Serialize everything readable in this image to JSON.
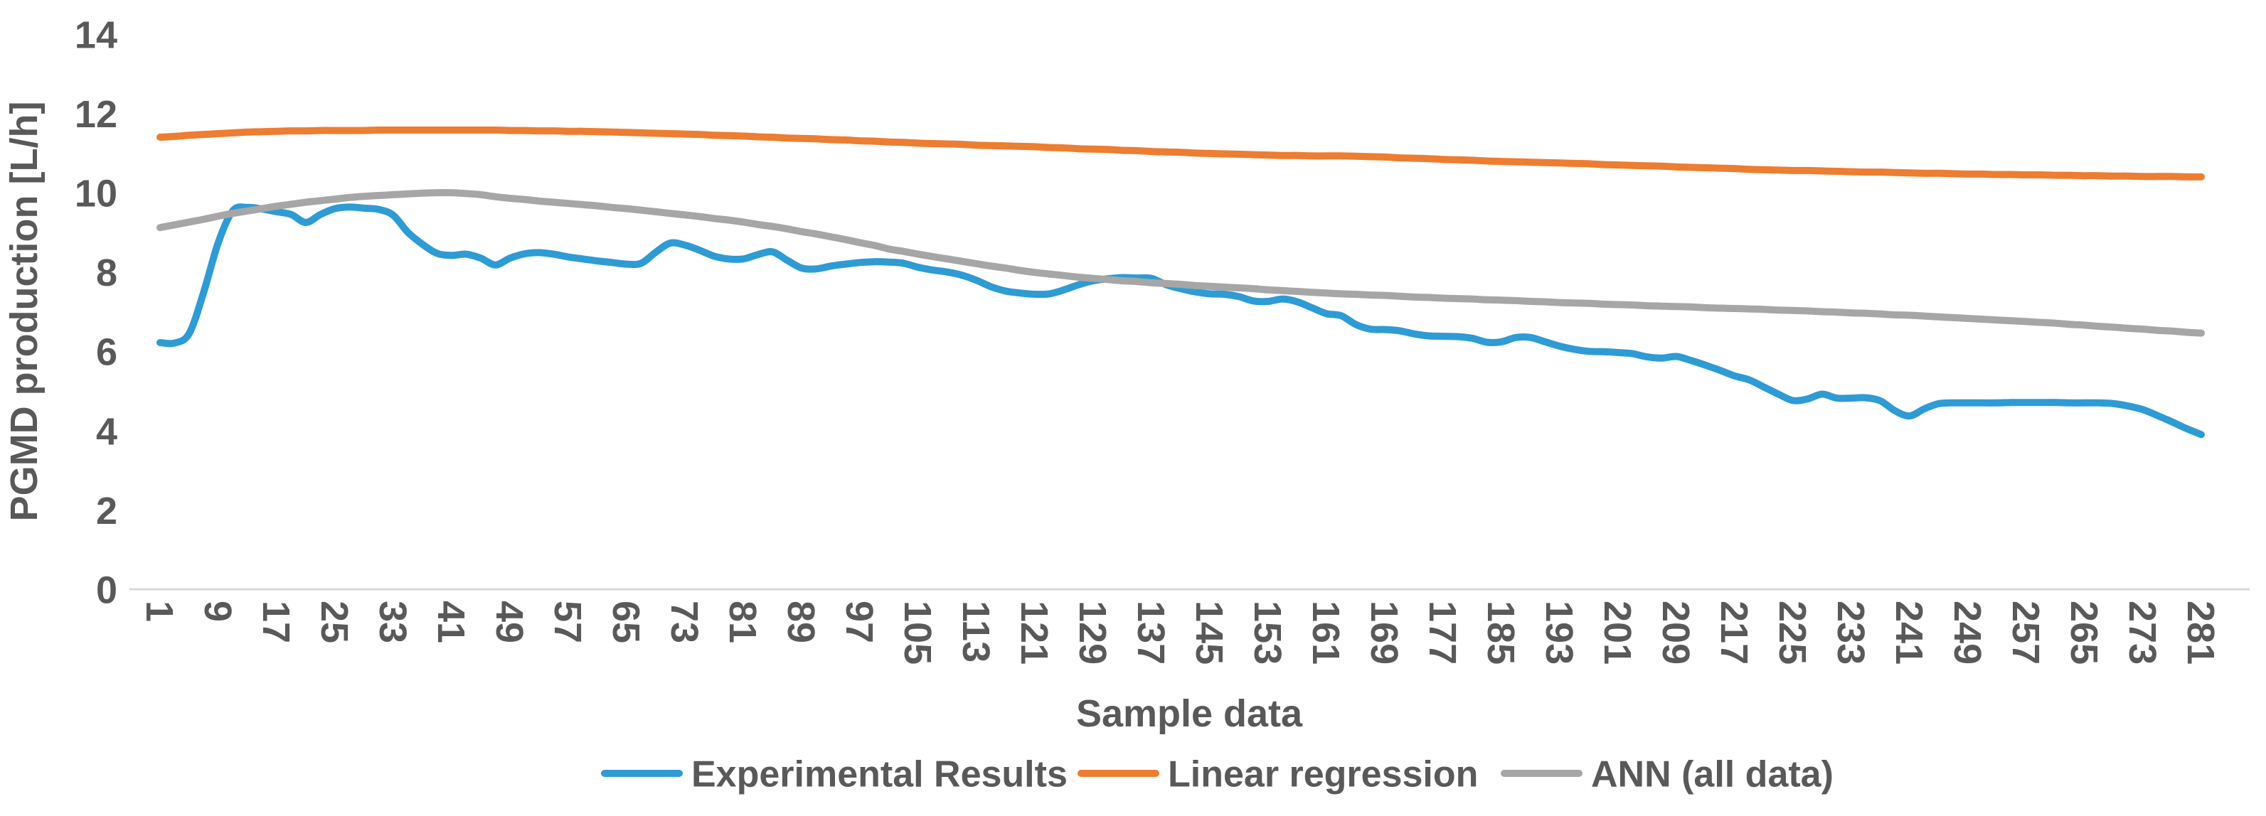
{
  "colors": {
    "background": "#FFFFFF",
    "text": "#595959",
    "axis_line": "#D9D9D9",
    "experimental_blue": "#2E9BD5",
    "regression_orange": "#ED7D31",
    "ann_gray": "#A6A6A6"
  },
  "chart_data": {
    "type": "line",
    "title": "",
    "xlabel": "Sample data",
    "ylabel": "PGMD production [L/h]",
    "xlim": [
      1,
      281
    ],
    "ylim": [
      0,
      14
    ],
    "grid": false,
    "legend_position": "bottom",
    "y_ticks": [
      0,
      2,
      4,
      6,
      8,
      10,
      12,
      14
    ],
    "x_ticks": [
      1,
      9,
      17,
      25,
      33,
      41,
      49,
      57,
      65,
      73,
      81,
      89,
      97,
      105,
      113,
      121,
      129,
      137,
      145,
      153,
      161,
      169,
      177,
      185,
      193,
      201,
      209,
      217,
      225,
      233,
      241,
      249,
      257,
      265,
      273,
      281
    ],
    "x": [
      1,
      3,
      5,
      7,
      9,
      11,
      13,
      15,
      17,
      19,
      21,
      23,
      25,
      27,
      29,
      31,
      33,
      35,
      37,
      39,
      41,
      43,
      45,
      47,
      49,
      51,
      53,
      55,
      57,
      59,
      61,
      63,
      65,
      67,
      69,
      71,
      73,
      75,
      77,
      79,
      81,
      83,
      85,
      87,
      89,
      91,
      93,
      95,
      97,
      99,
      101,
      103,
      105,
      107,
      109,
      111,
      113,
      115,
      117,
      119,
      121,
      123,
      125,
      127,
      129,
      131,
      133,
      135,
      137,
      139,
      141,
      143,
      145,
      147,
      149,
      151,
      153,
      155,
      157,
      159,
      161,
      163,
      165,
      167,
      169,
      171,
      173,
      175,
      177,
      179,
      181,
      183,
      185,
      187,
      189,
      191,
      193,
      195,
      197,
      199,
      201,
      203,
      205,
      207,
      209,
      211,
      213,
      215,
      217,
      219,
      221,
      223,
      225,
      227,
      229,
      231,
      233,
      235,
      237,
      239,
      241,
      243,
      245,
      247,
      249,
      251,
      253,
      255,
      257,
      259,
      261,
      263,
      265,
      267,
      269,
      271,
      273,
      275,
      277,
      279,
      281
    ],
    "series": [
      {
        "name": "Experimental Results",
        "color": "#2E9BD5",
        "values": [
          6.22,
          6.21,
          6.45,
          7.5,
          8.75,
          9.55,
          9.63,
          9.59,
          9.52,
          9.45,
          9.25,
          9.45,
          9.6,
          9.64,
          9.61,
          9.58,
          9.43,
          9.0,
          8.7,
          8.47,
          8.42,
          8.45,
          8.35,
          8.18,
          8.35,
          8.46,
          8.49,
          8.45,
          8.38,
          8.33,
          8.28,
          8.24,
          8.2,
          8.22,
          8.5,
          8.73,
          8.68,
          8.55,
          8.4,
          8.33,
          8.33,
          8.44,
          8.51,
          8.3,
          8.1,
          8.08,
          8.15,
          8.2,
          8.24,
          8.26,
          8.25,
          8.22,
          8.12,
          8.05,
          8.0,
          7.92,
          7.79,
          7.63,
          7.52,
          7.47,
          7.44,
          7.45,
          7.55,
          7.68,
          7.78,
          7.83,
          7.86,
          7.85,
          7.84,
          7.68,
          7.58,
          7.5,
          7.45,
          7.44,
          7.38,
          7.27,
          7.26,
          7.32,
          7.25,
          7.1,
          6.95,
          6.9,
          6.68,
          6.56,
          6.55,
          6.52,
          6.44,
          6.39,
          6.38,
          6.37,
          6.33,
          6.23,
          6.24,
          6.35,
          6.35,
          6.24,
          6.13,
          6.05,
          6.0,
          5.99,
          5.97,
          5.94,
          5.86,
          5.83,
          5.87,
          5.77,
          5.65,
          5.52,
          5.38,
          5.28,
          5.1,
          4.92,
          4.76,
          4.8,
          4.92,
          4.82,
          4.82,
          4.83,
          4.75,
          4.5,
          4.37,
          4.55,
          4.68,
          4.7,
          4.7,
          4.7,
          4.7,
          4.71,
          4.71,
          4.71,
          4.71,
          4.7,
          4.7,
          4.7,
          4.68,
          4.62,
          4.53,
          4.38,
          4.22,
          4.05,
          3.9
        ]
      },
      {
        "name": "Linear regression",
        "color": "#ED7D31",
        "values": [
          11.4,
          11.42,
          11.45,
          11.47,
          11.49,
          11.51,
          11.53,
          11.54,
          11.55,
          11.56,
          11.56,
          11.57,
          11.57,
          11.57,
          11.57,
          11.58,
          11.58,
          11.58,
          11.58,
          11.58,
          11.58,
          11.58,
          11.58,
          11.58,
          11.57,
          11.57,
          11.56,
          11.56,
          11.55,
          11.55,
          11.54,
          11.53,
          11.52,
          11.51,
          11.5,
          11.49,
          11.48,
          11.47,
          11.45,
          11.44,
          11.43,
          11.41,
          11.4,
          11.38,
          11.37,
          11.36,
          11.34,
          11.33,
          11.31,
          11.3,
          11.28,
          11.27,
          11.25,
          11.24,
          11.23,
          11.22,
          11.2,
          11.19,
          11.18,
          11.17,
          11.16,
          11.14,
          11.13,
          11.11,
          11.1,
          11.09,
          11.07,
          11.06,
          11.04,
          11.03,
          11.02,
          11.0,
          10.99,
          10.98,
          10.97,
          10.96,
          10.95,
          10.94,
          10.94,
          10.93,
          10.93,
          10.93,
          10.92,
          10.91,
          10.9,
          10.88,
          10.87,
          10.86,
          10.84,
          10.83,
          10.82,
          10.8,
          10.79,
          10.78,
          10.77,
          10.76,
          10.75,
          10.74,
          10.73,
          10.71,
          10.7,
          10.69,
          10.68,
          10.67,
          10.65,
          10.64,
          10.63,
          10.62,
          10.61,
          10.59,
          10.58,
          10.57,
          10.56,
          10.56,
          10.55,
          10.54,
          10.53,
          10.52,
          10.52,
          10.51,
          10.5,
          10.49,
          10.49,
          10.48,
          10.47,
          10.47,
          10.46,
          10.46,
          10.45,
          10.45,
          10.44,
          10.44,
          10.43,
          10.43,
          10.42,
          10.42,
          10.41,
          10.41,
          10.41,
          10.4,
          10.4
        ]
      },
      {
        "name": "ANN (all data)",
        "color": "#A6A6A6",
        "values": [
          9.12,
          9.19,
          9.26,
          9.33,
          9.41,
          9.48,
          9.54,
          9.6,
          9.66,
          9.71,
          9.76,
          9.8,
          9.84,
          9.88,
          9.91,
          9.93,
          9.95,
          9.97,
          9.99,
          10.0,
          10.0,
          9.98,
          9.95,
          9.9,
          9.86,
          9.83,
          9.79,
          9.76,
          9.73,
          9.7,
          9.67,
          9.63,
          9.6,
          9.56,
          9.52,
          9.48,
          9.44,
          9.4,
          9.35,
          9.31,
          9.26,
          9.2,
          9.15,
          9.09,
          9.02,
          8.96,
          8.89,
          8.82,
          8.74,
          8.67,
          8.58,
          8.52,
          8.45,
          8.39,
          8.33,
          8.27,
          8.21,
          8.15,
          8.1,
          8.04,
          7.99,
          7.95,
          7.91,
          7.87,
          7.84,
          7.81,
          7.78,
          7.76,
          7.73,
          7.71,
          7.69,
          7.66,
          7.64,
          7.62,
          7.6,
          7.58,
          7.55,
          7.53,
          7.51,
          7.49,
          7.47,
          7.45,
          7.44,
          7.42,
          7.41,
          7.39,
          7.37,
          7.36,
          7.34,
          7.33,
          7.32,
          7.3,
          7.29,
          7.28,
          7.26,
          7.25,
          7.23,
          7.22,
          7.21,
          7.19,
          7.18,
          7.17,
          7.15,
          7.14,
          7.13,
          7.12,
          7.1,
          7.09,
          7.08,
          7.07,
          7.06,
          7.04,
          7.03,
          7.02,
          7.0,
          6.99,
          6.97,
          6.96,
          6.94,
          6.92,
          6.91,
          6.89,
          6.87,
          6.85,
          6.83,
          6.81,
          6.79,
          6.77,
          6.75,
          6.73,
          6.71,
          6.68,
          6.66,
          6.63,
          6.61,
          6.58,
          6.56,
          6.53,
          6.51,
          6.48,
          6.46
        ]
      }
    ]
  }
}
